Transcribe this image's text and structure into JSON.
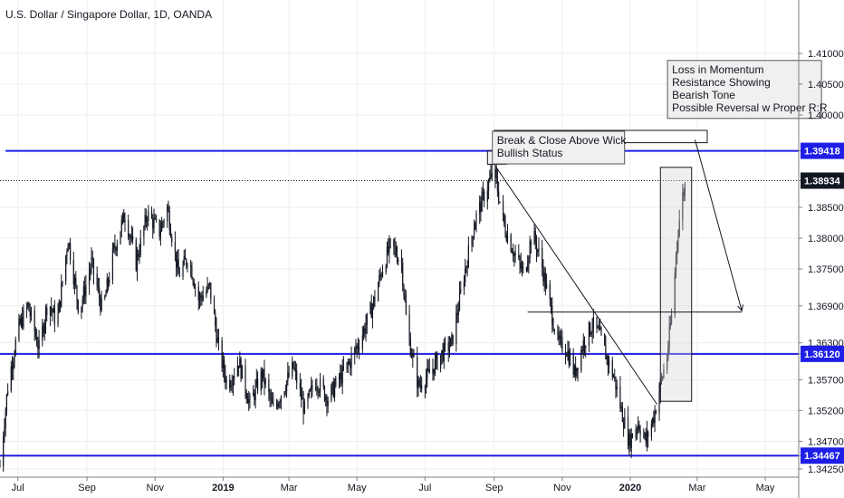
{
  "header": {
    "title": "U.S. Dollar / Singapore Dollar, 1D, OANDA"
  },
  "colors": {
    "level_line": "#1e1ee6",
    "candle": "#131722",
    "grid": "#eeeeee",
    "tag_background": "#1e1ee6",
    "current_tag_background": "#131722"
  },
  "chart_data": {
    "type": "candlestick",
    "x_range": [
      "2018-06-15",
      "2020-05-31"
    ],
    "ylim": [
      1.3425,
      1.415
    ],
    "grid": true,
    "y_ticks": [
      "1.41000",
      "1.40500",
      "1.40000",
      "1.39418",
      "1.38934",
      "1.38500",
      "1.38000",
      "1.37500",
      "1.36900",
      "1.36300",
      "1.36120",
      "1.35700",
      "1.35200",
      "1.34700",
      "1.34467",
      "1.34250"
    ],
    "x_ticks": [
      {
        "label": "Jul",
        "date": "2018-07-01",
        "bold": false
      },
      {
        "label": "Sep",
        "date": "2018-09-01",
        "bold": false
      },
      {
        "label": "Nov",
        "date": "2018-11-01",
        "bold": false
      },
      {
        "label": "2019",
        "date": "2019-01-01",
        "bold": true
      },
      {
        "label": "Mar",
        "date": "2019-03-01",
        "bold": false
      },
      {
        "label": "May",
        "date": "2019-05-01",
        "bold": false
      },
      {
        "label": "Jul",
        "date": "2019-07-01",
        "bold": false
      },
      {
        "label": "Sep",
        "date": "2019-09-01",
        "bold": false
      },
      {
        "label": "Nov",
        "date": "2019-11-01",
        "bold": false
      },
      {
        "label": "2020",
        "date": "2020-01-01",
        "bold": true
      },
      {
        "label": "Mar",
        "date": "2020-03-01",
        "bold": false
      },
      {
        "label": "May",
        "date": "2020-05-01",
        "bold": false
      }
    ],
    "price_path": [
      [
        "2018-06-15",
        1.343
      ],
      [
        "2018-06-22",
        1.356
      ],
      [
        "2018-07-01",
        1.365
      ],
      [
        "2018-07-10",
        1.369
      ],
      [
        "2018-07-20",
        1.362
      ],
      [
        "2018-07-28",
        1.37
      ],
      [
        "2018-08-05",
        1.366
      ],
      [
        "2018-08-15",
        1.38
      ],
      [
        "2018-08-25",
        1.368
      ],
      [
        "2018-09-05",
        1.376
      ],
      [
        "2018-09-15",
        1.368
      ],
      [
        "2018-09-25",
        1.378
      ],
      [
        "2018-10-05",
        1.384
      ],
      [
        "2018-10-15",
        1.376
      ],
      [
        "2018-10-25",
        1.384
      ],
      [
        "2018-11-05",
        1.381
      ],
      [
        "2018-11-12",
        1.385
      ],
      [
        "2018-11-22",
        1.374
      ],
      [
        "2018-12-01",
        1.377
      ],
      [
        "2018-12-10",
        1.37
      ],
      [
        "2018-12-20",
        1.372
      ],
      [
        "2018-12-28",
        1.362
      ],
      [
        "2019-01-05",
        1.356
      ],
      [
        "2019-01-15",
        1.36
      ],
      [
        "2019-01-25",
        1.353
      ],
      [
        "2019-02-05",
        1.358
      ],
      [
        "2019-02-15",
        1.352
      ],
      [
        "2019-02-25",
        1.356
      ],
      [
        "2019-03-05",
        1.359
      ],
      [
        "2019-03-15",
        1.352
      ],
      [
        "2019-03-25",
        1.357
      ],
      [
        "2019-04-05",
        1.354
      ],
      [
        "2019-04-15",
        1.357
      ],
      [
        "2019-04-25",
        1.36
      ],
      [
        "2019-05-05",
        1.364
      ],
      [
        "2019-05-15",
        1.369
      ],
      [
        "2019-05-25",
        1.376
      ],
      [
        "2019-06-01",
        1.379
      ],
      [
        "2019-06-10",
        1.376
      ],
      [
        "2019-06-15",
        1.365
      ],
      [
        "2019-06-25",
        1.356
      ],
      [
        "2019-07-05",
        1.358
      ],
      [
        "2019-07-15",
        1.361
      ],
      [
        "2019-07-25",
        1.363
      ],
      [
        "2019-08-05",
        1.374
      ],
      [
        "2019-08-15",
        1.383
      ],
      [
        "2019-08-25",
        1.388
      ],
      [
        "2019-09-01",
        1.391
      ],
      [
        "2019-09-05",
        1.387
      ],
      [
        "2019-09-10",
        1.382
      ],
      [
        "2019-09-20",
        1.377
      ],
      [
        "2019-09-28",
        1.374
      ],
      [
        "2019-10-05",
        1.381
      ],
      [
        "2019-10-12",
        1.377
      ],
      [
        "2019-10-20",
        1.37
      ],
      [
        "2019-10-28",
        1.363
      ],
      [
        "2019-11-05",
        1.362
      ],
      [
        "2019-11-12",
        1.358
      ],
      [
        "2019-11-20",
        1.363
      ],
      [
        "2019-11-28",
        1.366
      ],
      [
        "2019-12-05",
        1.364
      ],
      [
        "2019-12-12",
        1.36
      ],
      [
        "2019-12-18",
        1.357
      ],
      [
        "2019-12-24",
        1.352
      ],
      [
        "2019-12-31",
        1.347
      ],
      [
        "2020-01-08",
        1.35
      ],
      [
        "2020-01-15",
        1.347
      ],
      [
        "2020-01-22",
        1.351
      ],
      [
        "2020-01-28",
        1.356
      ],
      [
        "2020-02-03",
        1.361
      ],
      [
        "2020-02-08",
        1.369
      ],
      [
        "2020-02-12",
        1.38
      ],
      [
        "2020-02-16",
        1.386
      ],
      [
        "2020-02-20",
        1.3893
      ]
    ]
  },
  "price_levels": [
    {
      "value": 1.39418,
      "label": "1.39418",
      "start_date": "2018-06-20"
    },
    {
      "value": 1.3612,
      "label": "1.36120",
      "start_date": "2018-06-15"
    },
    {
      "value": 1.34467,
      "label": "1.34467",
      "start_date": "2018-06-15"
    }
  ],
  "current_price": {
    "value": 1.38934,
    "label": "1.38934"
  },
  "annotations": {
    "note_breakout": {
      "lines": [
        "Break & Close Above Wick",
        "Bullish Status"
      ],
      "anchor_date": "2019-09-01",
      "anchor_price": 1.395
    },
    "note_momentum": {
      "lines": [
        "Loss in Momentum",
        "Resistance Showing",
        "Bearish Tone",
        "Possible Reversal w Proper R:R"
      ],
      "anchor_date": "2020-02-05",
      "anchor_price": 1.4065
    },
    "empty_box": {
      "start_date": "2019-09-01",
      "end_date": "2020-03-10",
      "price_top": 1.3975,
      "price_bottom": 1.3955
    },
    "wick_box": {
      "start_date": "2019-08-26",
      "end_date": "2019-09-12",
      "price_top": 1.3942,
      "price_bottom": 1.392
    },
    "move_box": {
      "start_date": "2020-01-28",
      "end_date": "2020-02-25",
      "price_top": 1.3915,
      "price_bottom": 1.3535
    },
    "horizontal_level": {
      "start_date": "2019-10-01",
      "end_date": "2020-04-10",
      "price": 1.368
    },
    "trend_line": {
      "from_date": "2019-09-01",
      "from_price": 1.392,
      "to_date": "2020-01-25",
      "to_price": 1.353
    },
    "projection_arrow": {
      "from_date": "2020-02-28",
      "from_price": 1.396,
      "to_date": "2020-04-10",
      "to_price": 1.3682
    }
  }
}
